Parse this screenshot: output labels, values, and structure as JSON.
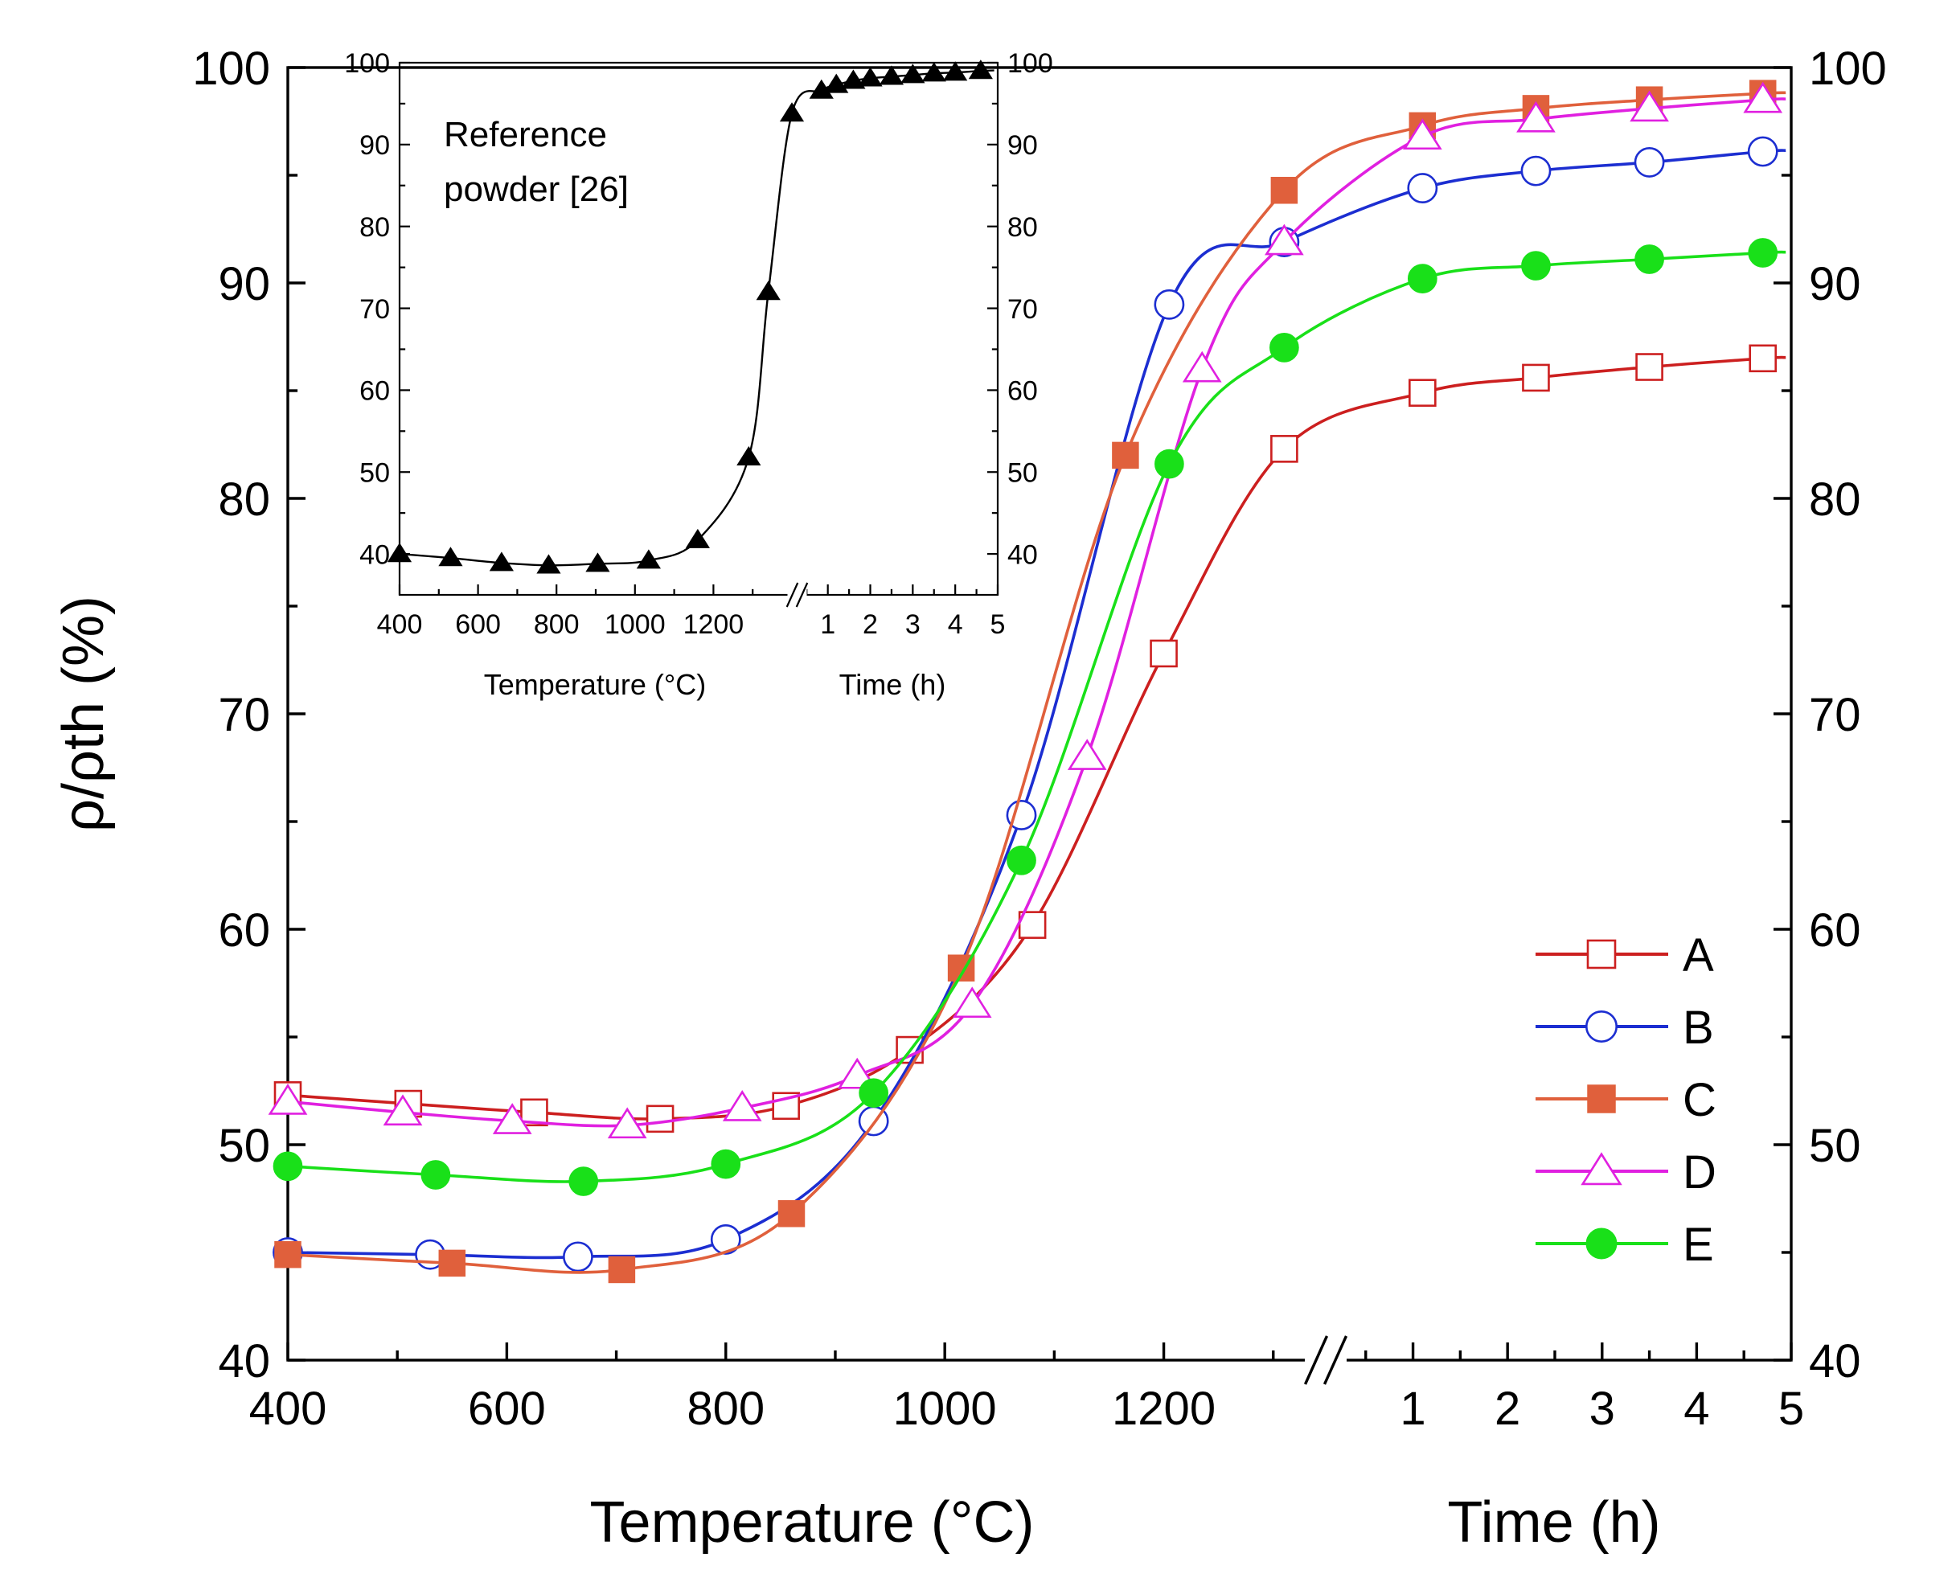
{
  "chart_data": [
    {
      "type": "line",
      "ylabel": "ρ/ρth (%)",
      "ylim": [
        40,
        100
      ],
      "y_ticks": [
        "40",
        "50",
        "60",
        "70",
        "80",
        "90",
        "100"
      ],
      "y_ticks_right": [
        "40",
        "50",
        "60",
        "70",
        "80",
        "90",
        "100"
      ],
      "x_segments": [
        {
          "label": "Temperature (°C)",
          "range": [
            400,
            1320
          ],
          "ticks": [
            "400",
            "600",
            "800",
            "1000",
            "1200"
          ]
        },
        {
          "label": "Time (h)",
          "range": [
            0.4,
            5
          ],
          "ticks": [
            "1",
            "2",
            "3",
            "4",
            "5"
          ]
        }
      ],
      "legend": {
        "position": "right-bottom",
        "entries": [
          "A",
          "B",
          "C",
          "D",
          "E"
        ]
      },
      "series": [
        {
          "name": "A",
          "color": "#cc1f1f",
          "marker": "square-open",
          "temperature": [
            [
              400,
              52.3
            ],
            [
              510,
              51.9
            ],
            [
              625,
              51.5
            ],
            [
              740,
              51.2
            ],
            [
              855,
              51.8
            ],
            [
              968,
              54.4
            ],
            [
              1080,
              60.2
            ],
            [
              1200,
              72.8
            ],
            [
              1310,
              82.3
            ]
          ],
          "time": [
            [
              1.1,
              84.9
            ],
            [
              2.3,
              85.6
            ],
            [
              3.5,
              86.1
            ],
            [
              4.7,
              86.5
            ]
          ]
        },
        {
          "name": "B",
          "color": "#1c2ed1",
          "marker": "circle-open",
          "temperature": [
            [
              400,
              45.0
            ],
            [
              530,
              44.9
            ],
            [
              665,
              44.8
            ],
            [
              800,
              45.6
            ],
            [
              935,
              51.1
            ],
            [
              1070,
              65.3
            ],
            [
              1205,
              89.0
            ],
            [
              1310,
              91.9
            ]
          ],
          "time": [
            [
              1.1,
              94.4
            ],
            [
              2.3,
              95.2
            ],
            [
              3.5,
              95.6
            ],
            [
              4.7,
              96.1
            ]
          ]
        },
        {
          "name": "C",
          "color": "#e0603c",
          "marker": "square-filled",
          "temperature": [
            [
              400,
              44.9
            ],
            [
              550,
              44.5
            ],
            [
              705,
              44.2
            ],
            [
              860,
              46.8
            ],
            [
              1015,
              58.2
            ],
            [
              1165,
              82.0
            ],
            [
              1310,
              94.3
            ]
          ],
          "time": [
            [
              1.1,
              97.3
            ],
            [
              2.3,
              98.1
            ],
            [
              3.5,
              98.5
            ],
            [
              4.7,
              98.8
            ]
          ]
        },
        {
          "name": "D",
          "color": "#e020e0",
          "marker": "triangle-open",
          "temperature": [
            [
              400,
              52.0
            ],
            [
              505,
              51.5
            ],
            [
              605,
              51.1
            ],
            [
              710,
              50.9
            ],
            [
              815,
              51.7
            ],
            [
              920,
              53.2
            ],
            [
              1025,
              56.5
            ],
            [
              1130,
              68.0
            ],
            [
              1235,
              86.0
            ],
            [
              1310,
              91.9
            ]
          ],
          "time": [
            [
              1.1,
              96.8
            ],
            [
              2.3,
              97.6
            ],
            [
              3.5,
              98.1
            ],
            [
              4.7,
              98.5
            ]
          ]
        },
        {
          "name": "E",
          "color": "#19e019",
          "marker": "circle-filled",
          "temperature": [
            [
              400,
              49.0
            ],
            [
              535,
              48.6
            ],
            [
              670,
              48.3
            ],
            [
              800,
              49.1
            ],
            [
              935,
              52.4
            ],
            [
              1070,
              63.2
            ],
            [
              1205,
              81.6
            ],
            [
              1310,
              87.0
            ]
          ],
          "time": [
            [
              1.1,
              90.2
            ],
            [
              2.3,
              90.8
            ],
            [
              3.5,
              91.1
            ],
            [
              4.7,
              91.4
            ]
          ]
        }
      ]
    },
    {
      "type": "line",
      "annotation": [
        "Reference",
        "powder [26]"
      ],
      "ylim": [
        35,
        100
      ],
      "y_ticks": [
        "40",
        "50",
        "60",
        "70",
        "80",
        "90",
        "100"
      ],
      "y_ticks_right": [
        "40",
        "50",
        "60",
        "70",
        "80",
        "90",
        "100"
      ],
      "x_segments": [
        {
          "label": "Temperature (°C)",
          "range": [
            400,
            1400
          ],
          "ticks": [
            "400",
            "600",
            "800",
            "1000",
            "1200"
          ]
        },
        {
          "label": "Time (h)",
          "range": [
            0.4,
            5
          ],
          "ticks": [
            "1",
            "2",
            "3",
            "4",
            "5"
          ]
        }
      ],
      "series": [
        {
          "color": "#000000",
          "marker": "triangle-filled",
          "temperature": [
            [
              400,
              40.0
            ],
            [
              530,
              39.5
            ],
            [
              660,
              38.9
            ],
            [
              780,
              38.6
            ],
            [
              905,
              38.8
            ],
            [
              1035,
              39.2
            ],
            [
              1160,
              41.7
            ],
            [
              1290,
              51.8
            ],
            [
              1340,
              72.0
            ],
            [
              1400,
              93.8
            ]
          ],
          "time": [
            [
              0.85,
              96.6
            ],
            [
              1.2,
              97.3
            ],
            [
              1.6,
              97.8
            ],
            [
              2.0,
              98.1
            ],
            [
              2.5,
              98.3
            ],
            [
              3.0,
              98.5
            ],
            [
              3.5,
              98.7
            ],
            [
              4.0,
              98.8
            ],
            [
              4.6,
              99.0
            ]
          ]
        }
      ]
    }
  ]
}
